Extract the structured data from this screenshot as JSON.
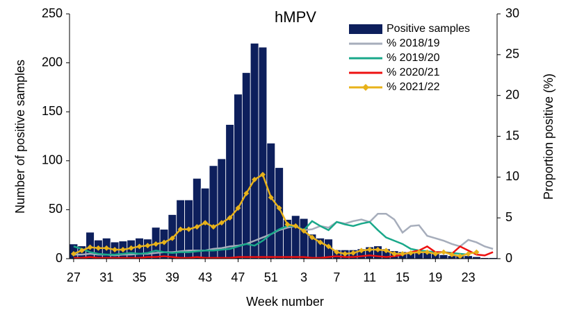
{
  "chart_data": {
    "type": "bar-line",
    "title": "hMPV",
    "x_label": "Week number",
    "y_label": "Number of positive samples",
    "y2_label": "Proportion positive (%)",
    "categories": [
      "27",
      null,
      null,
      null,
      "31",
      null,
      null,
      null,
      "35",
      null,
      null,
      null,
      "39",
      null,
      null,
      null,
      "43",
      null,
      null,
      null,
      "47",
      null,
      null,
      null,
      "51",
      null,
      null,
      null,
      "3",
      null,
      null,
      null,
      "7",
      null,
      null,
      null,
      "11",
      null,
      null,
      null,
      "15",
      null,
      null,
      null,
      "19",
      null,
      null,
      null,
      "23",
      null,
      null,
      null
    ],
    "ylim": [
      0,
      250
    ],
    "yticks": [
      0,
      50,
      100,
      150,
      200,
      250
    ],
    "y2lim": [
      0,
      30
    ],
    "y2ticks": [
      0,
      5,
      10,
      15,
      20,
      25,
      30
    ],
    "series": [
      {
        "name": "Positive samples",
        "type": "bar",
        "color": "#0d1f5c",
        "values": [
          15,
          13,
          27,
          19,
          21,
          17,
          18,
          19,
          21,
          20,
          32,
          30,
          45,
          60,
          60,
          82,
          72,
          95,
          102,
          137,
          168,
          190,
          220,
          216,
          118,
          93,
          40,
          44,
          41,
          25,
          21,
          20,
          9,
          9,
          9,
          10,
          12,
          13,
          10,
          8,
          7,
          6,
          6,
          7,
          5,
          4,
          3,
          4,
          3,
          2,
          1,
          1
        ]
      },
      {
        "name": "% 2018/19",
        "type": "line",
        "axis": "y2",
        "color": "#a6adbb",
        "values": [
          0.5,
          0.5,
          0.6,
          0.5,
          0.5,
          0.4,
          0.5,
          0.5,
          0.6,
          0.6,
          0.7,
          0.8,
          0.8,
          0.9,
          1.0,
          1.0,
          1.0,
          1.2,
          1.3,
          1.5,
          1.6,
          1.8,
          2.2,
          2.6,
          3.0,
          3.5,
          3.8,
          4.0,
          3.5,
          3.6,
          4.0,
          3.8,
          4.5,
          4.3,
          4.6,
          4.8,
          4.5,
          5.5,
          5.5,
          4.8,
          3.2,
          4.0,
          4.1,
          2.8,
          2.5,
          2.2,
          1.8,
          1.5,
          2.3,
          2.0,
          1.5,
          1.2
        ]
      },
      {
        "name": "% 2019/20",
        "type": "line",
        "axis": "y2",
        "color": "#1aa88a",
        "values": [
          1.5,
          1.2,
          0.8,
          0.6,
          0.5,
          0.5,
          0.6,
          0.7,
          0.6,
          0.7,
          1.0,
          0.8,
          0.7,
          0.8,
          0.8,
          0.9,
          1.0,
          1.0,
          1.1,
          1.2,
          1.5,
          1.8,
          1.6,
          2.2,
          3.0,
          3.6,
          4.0,
          4.0,
          3.5,
          4.6,
          4.0,
          3.5,
          4.5,
          4.2,
          4.0,
          4.3,
          4.5,
          3.5,
          2.6,
          2.2,
          1.8,
          1.2,
          1.0,
          0.9,
          0.8,
          0.8,
          0.7,
          0.6,
          0.5,
          null,
          null,
          null
        ]
      },
      {
        "name": "% 2020/21",
        "type": "line",
        "axis": "y2",
        "color": "#ee1111",
        "values": [
          0.1,
          0.1,
          0.2,
          0.1,
          0.1,
          0.1,
          0.1,
          0.1,
          0.1,
          0.2,
          0.2,
          0.3,
          0.2,
          0.1,
          0.1,
          0.2,
          0.1,
          0.1,
          0.1,
          0.1,
          0.2,
          0.2,
          0.2,
          0.2,
          0.2,
          0.2,
          0.2,
          0.2,
          0.2,
          0.1,
          0.1,
          0.2,
          0.3,
          0.2,
          0.2,
          0.3,
          0.4,
          0.3,
          0.2,
          0.3,
          0.5,
          0.8,
          1.0,
          1.5,
          0.8,
          0.8,
          0.6,
          1.5,
          1.0,
          0.5,
          0.4,
          0.8
        ]
      },
      {
        "name": "% 2021/22",
        "type": "line",
        "axis": "y2",
        "marker": "diamond",
        "color": "#e8b21a",
        "values": [
          0.6,
          1.0,
          1.4,
          1.3,
          1.3,
          1.1,
          1.1,
          1.3,
          1.5,
          1.6,
          1.8,
          2.0,
          2.5,
          3.6,
          3.6,
          3.9,
          4.4,
          3.9,
          4.4,
          5.0,
          6.2,
          8.0,
          9.7,
          10.3,
          7.5,
          6.2,
          4.2,
          4.0,
          3.4,
          2.6,
          2.0,
          1.5,
          0.8,
          0.6,
          0.7,
          1.0,
          1.1,
          1.1,
          1.0,
          0.6,
          0.6,
          0.7,
          0.8,
          0.8,
          0.6,
          0.8,
          0.5,
          0.3,
          0.6,
          0.8,
          null,
          null
        ]
      }
    ]
  }
}
